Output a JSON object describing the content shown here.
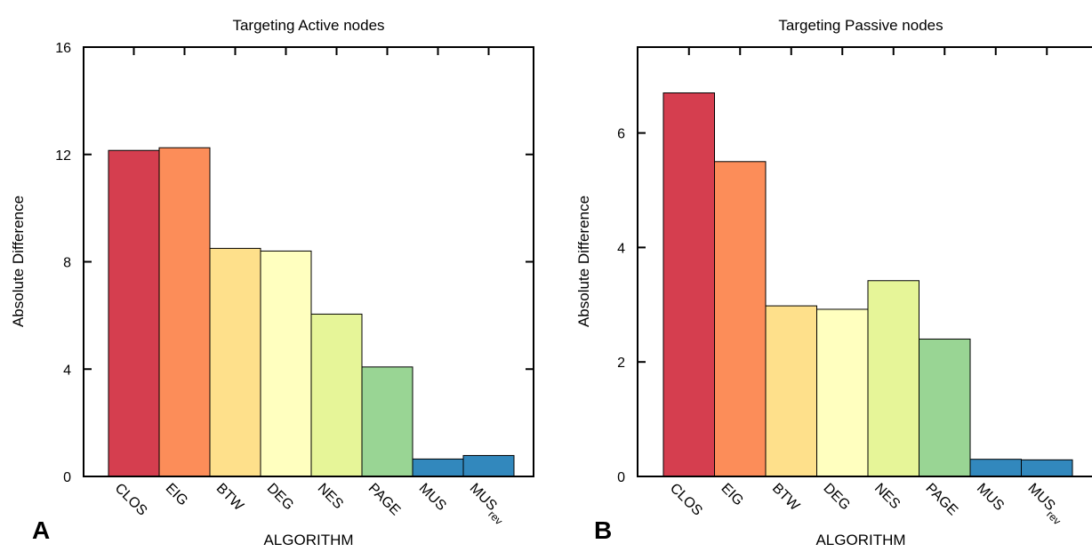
{
  "chart_data": [
    {
      "type": "bar",
      "panel": "A",
      "title": "Targeting Active nodes",
      "xlabel": "ALGORITHM",
      "ylabel": "Absolute Difference",
      "ylim": [
        0,
        16
      ],
      "yticks": [
        "0",
        "4",
        "8",
        "12",
        "16"
      ],
      "categories": [
        {
          "label": "CLOS",
          "sub": ""
        },
        {
          "label": "EIG",
          "sub": ""
        },
        {
          "label": "BTW",
          "sub": ""
        },
        {
          "label": "DEG",
          "sub": ""
        },
        {
          "label": "NES",
          "sub": ""
        },
        {
          "label": "PAGE",
          "sub": ""
        },
        {
          "label": "MUS",
          "sub": ""
        },
        {
          "label": "MUS",
          "sub": "rev"
        }
      ],
      "values": [
        12.15,
        12.25,
        8.5,
        8.4,
        6.05,
        4.08,
        0.65,
        0.78
      ],
      "colors": [
        "#d53e4f",
        "#fc8d59",
        "#fee08b",
        "#ffffbf",
        "#e6f598",
        "#99d594",
        "#3288bd",
        "#3288bd"
      ]
    },
    {
      "type": "bar",
      "panel": "B",
      "title": "Targeting Passive nodes",
      "xlabel": "ALGORITHM",
      "ylabel": "Absolute Difference",
      "ylim": [
        0,
        7.5
      ],
      "yticks": [
        "0",
        "2",
        "4",
        "6"
      ],
      "categories": [
        {
          "label": "CLOS",
          "sub": ""
        },
        {
          "label": "EIG",
          "sub": ""
        },
        {
          "label": "BTW",
          "sub": ""
        },
        {
          "label": "DEG",
          "sub": ""
        },
        {
          "label": "NES",
          "sub": ""
        },
        {
          "label": "PAGE",
          "sub": ""
        },
        {
          "label": "MUS",
          "sub": ""
        },
        {
          "label": "MUS",
          "sub": "rev"
        }
      ],
      "values": [
        6.7,
        5.5,
        2.98,
        2.92,
        3.42,
        2.4,
        0.3,
        0.29
      ],
      "colors": [
        "#d53e4f",
        "#fc8d59",
        "#fee08b",
        "#ffffbf",
        "#e6f598",
        "#99d594",
        "#3288bd",
        "#3288bd"
      ]
    }
  ]
}
